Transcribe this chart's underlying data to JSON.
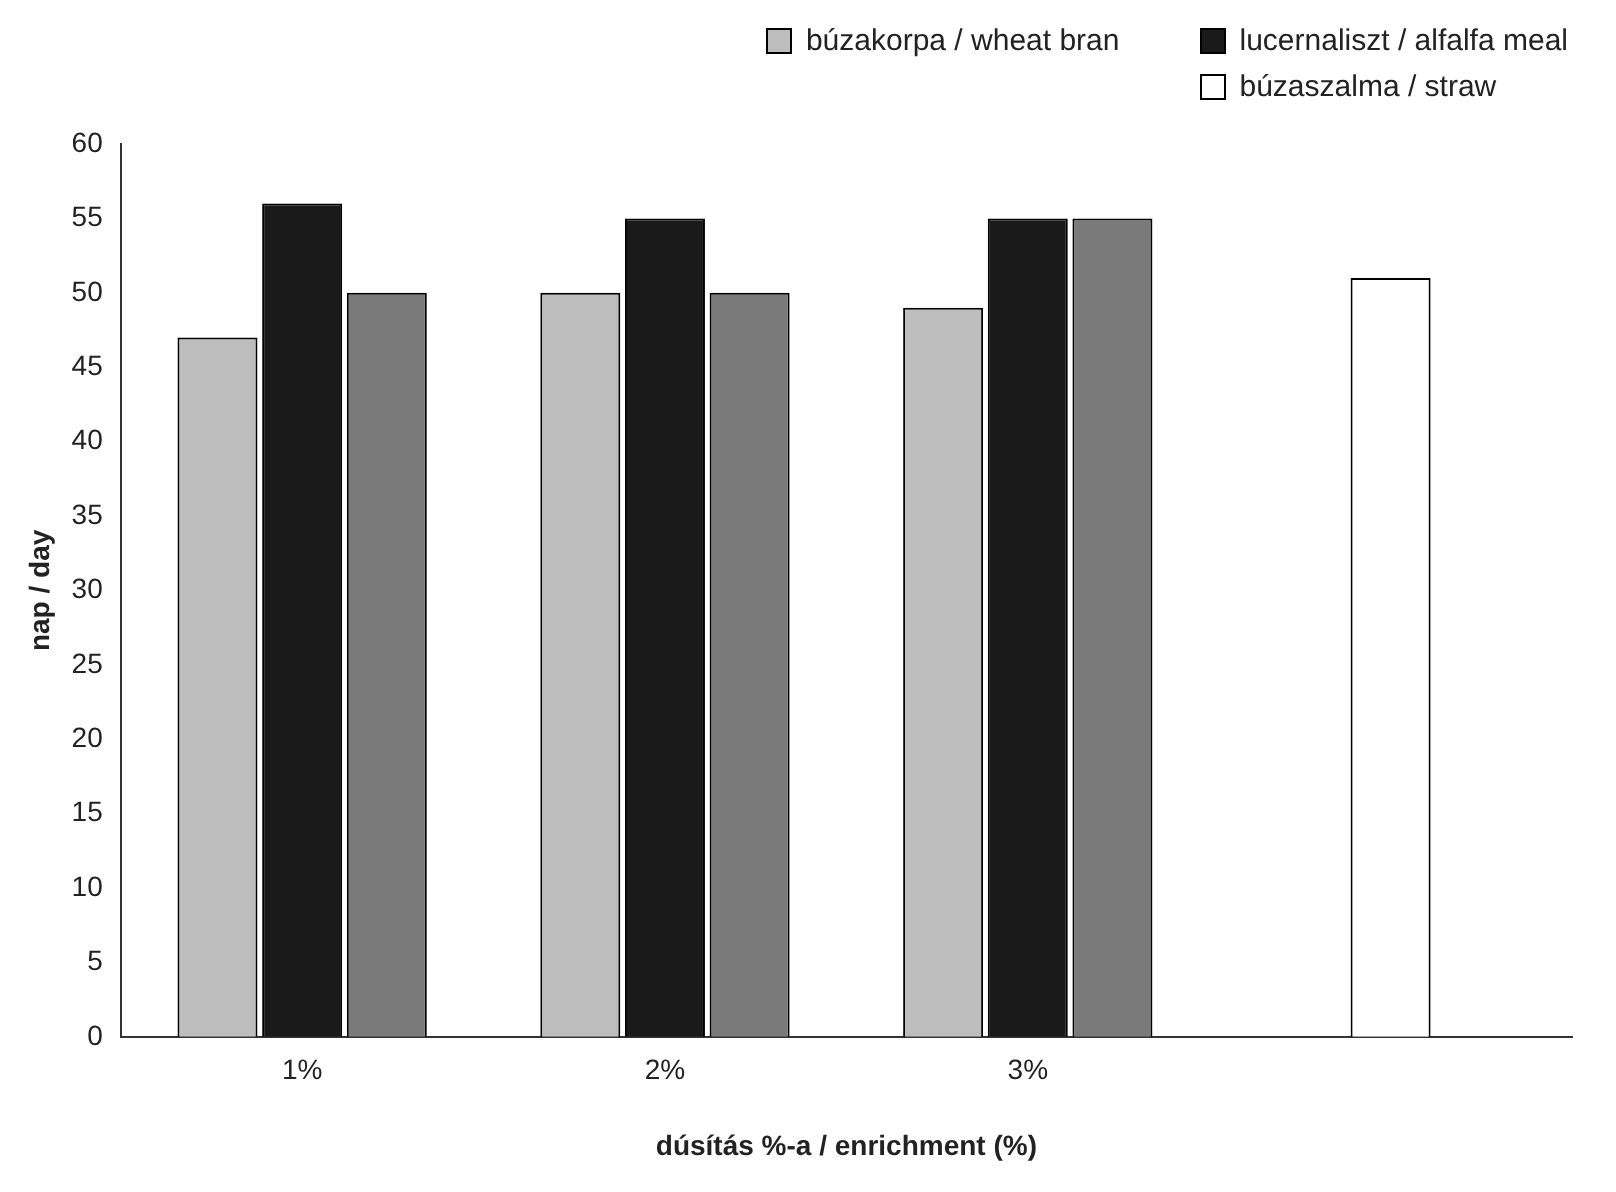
{
  "chart_data": {
    "type": "bar",
    "xlabel": "dúsítás %-a / enrichment (%)",
    "ylabel": "nap / day",
    "categories": [
      "1%",
      "2%",
      "3%",
      null
    ],
    "series": [
      {
        "name": "búzakorpa / wheat bran",
        "color": "#bdbdbd",
        "values": [
          47,
          50,
          49,
          null
        ]
      },
      {
        "name": "lucernaliszt / alfalfa meal",
        "color": "#1a1a1a",
        "values": [
          56,
          55,
          55,
          null
        ]
      },
      {
        "color": "#7a7a7a",
        "values": [
          50,
          50,
          55,
          null
        ]
      },
      {
        "name": "búzaszalma / straw",
        "color": "#ffffff",
        "values": [
          null,
          null,
          null,
          51
        ]
      }
    ],
    "ylim": [
      0,
      60
    ],
    "yticks": [
      0,
      5,
      10,
      15,
      20,
      25,
      30,
      35,
      40,
      45,
      50,
      55,
      60
    ],
    "grid": false,
    "legend": "top right"
  }
}
